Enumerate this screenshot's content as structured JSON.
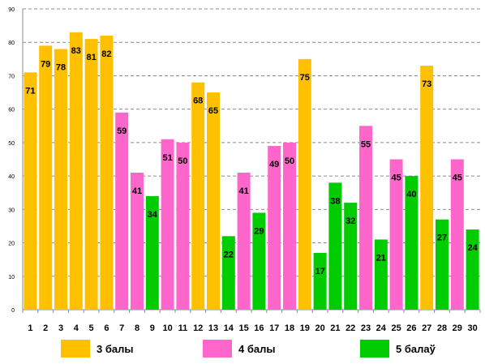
{
  "chart_data": {
    "type": "bar",
    "title": "",
    "xlabel": "",
    "ylabel": "",
    "ylim": [
      0,
      90
    ],
    "yticks": [
      0,
      10,
      20,
      30,
      40,
      50,
      60,
      70,
      80,
      90
    ],
    "grid": true,
    "legend_position": "bottom",
    "categories": [
      "1",
      "2",
      "3",
      "4",
      "5",
      "6",
      "7",
      "8",
      "9",
      "10",
      "11",
      "12",
      "13",
      "14",
      "15",
      "16",
      "17",
      "18",
      "19",
      "20",
      "21",
      "22",
      "23",
      "24",
      "25",
      "26",
      "27",
      "28",
      "29",
      "30"
    ],
    "values": [
      71,
      79,
      78,
      83,
      81,
      82,
      59,
      41,
      34,
      51,
      50,
      68,
      65,
      22,
      41,
      29,
      49,
      50,
      75,
      17,
      38,
      32,
      55,
      21,
      45,
      40,
      73,
      27,
      45,
      24
    ],
    "groups": [
      "g3",
      "g3",
      "g3",
      "g3",
      "g3",
      "g3",
      "g4",
      "g4",
      "g5",
      "g4",
      "g4",
      "g3",
      "g3",
      "g5",
      "g4",
      "g5",
      "g4",
      "g4",
      "g3",
      "g5",
      "g5",
      "g5",
      "g4",
      "g5",
      "g4",
      "g5",
      "g3",
      "g5",
      "g4",
      "g5"
    ],
    "legend": [
      {
        "key": "g3",
        "label": "3 балы",
        "color": "#FFC000"
      },
      {
        "key": "g4",
        "label": "4 балы",
        "color": "#FF66CC"
      },
      {
        "key": "g5",
        "label": "5 балаў",
        "color": "#00CC00"
      }
    ]
  }
}
